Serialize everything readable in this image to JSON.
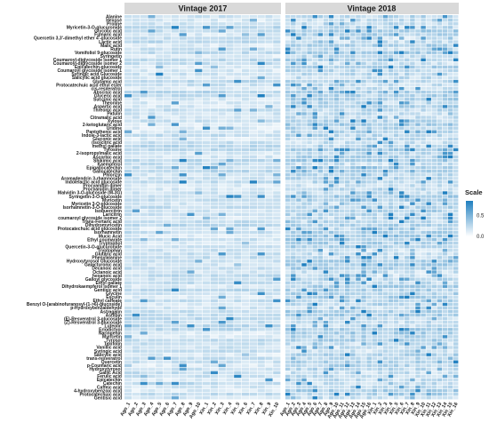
{
  "chart_data": {
    "type": "heatmap",
    "title": "",
    "xlabel": "",
    "ylabel": "",
    "panels": [
      {
        "name": "Vintage 2017",
        "columns": [
          "Ago_1",
          "Ago_2",
          "Ago_3",
          "Ago_4",
          "Ago_5",
          "Ago_6",
          "Ago_7",
          "Ago_8",
          "Ago_9",
          "Ago_10",
          "Xin_1",
          "Xin_2",
          "Xin_3",
          "Xin_4",
          "Xin_5",
          "Xin_6",
          "Xin_7",
          "Xin_8",
          "Xin_9",
          "Xin_10"
        ]
      },
      {
        "name": "Vintage 2018",
        "columns": [
          "Ago_1",
          "Ago_2",
          "Ago_3",
          "Ago_4",
          "Ago_5",
          "Ago_6",
          "Ago_7",
          "Ago_8",
          "Ago_9",
          "Ago_10",
          "Ago_11",
          "Ago_12",
          "Ago_13",
          "Ago_14",
          "Ago_15",
          "Ago_16",
          "Xin_1",
          "Xin_2",
          "Xin_3",
          "Xin_4",
          "Xin_5",
          "Xin_6",
          "Xin_7",
          "Xin_8",
          "Xin_9",
          "Xin_10",
          "Xin_11",
          "Xin_12",
          "Xin_13",
          "Xin_14",
          "Xin_15",
          "Xin_16"
        ]
      }
    ],
    "rows": [
      "Alanine",
      "Hexose",
      "Proline",
      "Myricetin-3-O-glucuronide",
      "Glycolic acid",
      "Fumaric acid",
      "Quercetin 3,3'-dimethyl ether 4'-glucoside",
      "Lactic acid",
      "Malic acid",
      "Rutin",
      "Vomifoliol 9-glucoside",
      "Syringetin",
      "Coumaroyl-diglycoside isomer 1",
      "Coumaroyl-diglycoside isomer 2",
      "Epicatechin-glucoside",
      "Coumaroyl glycoside isomer 1",
      "Syringic acid Glucoside",
      "Salicylic acid glucoside",
      "Glutamic acid",
      "Protocatechuic acid ethyl ester",
      "cis-resveratrol",
      "Abscisic acid",
      "Glyceric acid",
      "Succinic acid",
      "Theonine",
      "Aspartic acid",
      "Threonic acid",
      "Patulin",
      "Citramalic acid",
      "Xylose",
      "2-ketoglutaric acid",
      "Uridine",
      "Pantothenic acid",
      "Indole-3-lactic acid",
      "Gluconic acid",
      "(iso)citric acid",
      "methyl gallate",
      "Tyrosine",
      "2-isopropylmalic acid",
      "Ascorbic acid",
      "Shikimic acid",
      "Kaempferol",
      "Epigallocatechin",
      "Gallocatechin",
      "Phlorizin",
      "Aromadendrin 3-rhamnoside",
      "Indolelactic acid glucoside",
      "Procyanidin dimer",
      "Procyanidin dimer",
      "Malvidin 3-O-glucoside (M-3G)",
      "Syringetin-3-O-glucoside",
      "Myricetin",
      "Myricetin 3-O-glucoside",
      "Isorhamnetin-3-O-glucoside",
      "Isoquercitrin",
      "Laricitrin",
      "coumaroyl glycoside isomer 2",
      "Trans-Fertaric acid",
      "Dihydromyricetin",
      "Protocatechuic acid glucoside",
      "Isorhamnetin",
      "Mucic Acid",
      "Ethyl coumarate",
      "Tryptophol",
      "Quercetin-3-O-glucuronide",
      "Tryptophan",
      "Glutaric acid",
      "Phenylalanine",
      "Hydroxytyrosol Glucoside",
      "Galacturonic acid",
      "Decanoic acid",
      "Octanoic acid",
      "hexanoic acid",
      "Galloyl glycoside",
      "Ethyl gallate",
      "Dihydrokaempferol isomer 1",
      "Gentisic acid",
      "Glycine",
      "Esculin",
      "Ethyl caffeate",
      "Benzyl O-[arabinofuranosyl-(1->6)-glucoside]",
      "p-Hydroxybenzaldehyde",
      "Astragalin",
      "Astilbin",
      "(E)-Resveratrol 3-glucoside",
      "(Z)-Resveratrol 3-glucoside",
      "Luteolin",
      "Eriodictyol",
      "Naringenin",
      "Myricetin",
      "Tyrosol",
      "Taxifolin",
      "Vanillic acid",
      "Syringic acid",
      "Salicylic acid",
      "trans-resveratrol",
      "Quercetin",
      "p-Coumaric acid",
      "Hydroxytyrosol",
      "Gallic Acid",
      "Ferulic acid",
      "Epicatechin",
      "Catechin",
      "Caffeic acid",
      "4-hydroxybenzoic acid",
      "Protocatechuic acid",
      "Gentisic acid"
    ],
    "color_scale": {
      "low": "#ffffff",
      "high": "#1f7fbf",
      "min": 0,
      "max": 0.85,
      "ticks": [
        0.0,
        0.5
      ]
    },
    "legend": {
      "title": "Scale",
      "position": "right"
    },
    "grid": false
  }
}
